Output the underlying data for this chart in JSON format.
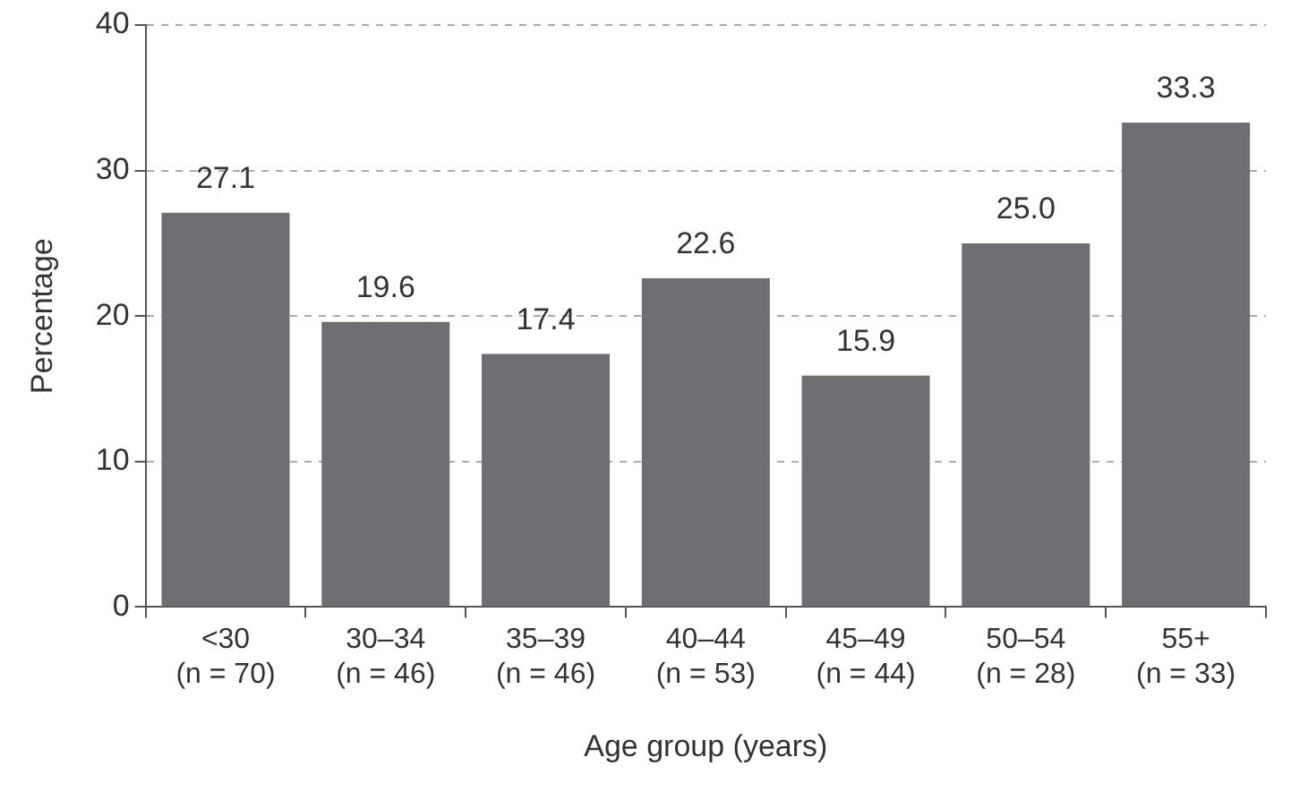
{
  "chart_data": {
    "type": "bar",
    "categories": [
      "<30\n(n = 70)",
      "30–34\n(n = 46)",
      "35–39\n(n = 46)",
      "40–44\n(n = 53)",
      "45–49\n(n = 44)",
      "50–54\n(n = 28)",
      "55+\n(n = 33)"
    ],
    "values": [
      27.1,
      19.6,
      17.4,
      22.6,
      15.9,
      25.0,
      33.3
    ],
    "value_labels": [
      "27.1",
      "19.6",
      "17.4",
      "22.6",
      "15.9",
      "25.0",
      "33.3"
    ],
    "color": "#6d6e71",
    "xlabel": "Age group (years)",
    "ylabel": "Percentage",
    "ylim": [
      0,
      40
    ],
    "yticks": [
      0,
      10,
      20,
      30,
      40
    ],
    "grid": "y",
    "legend": false
  }
}
